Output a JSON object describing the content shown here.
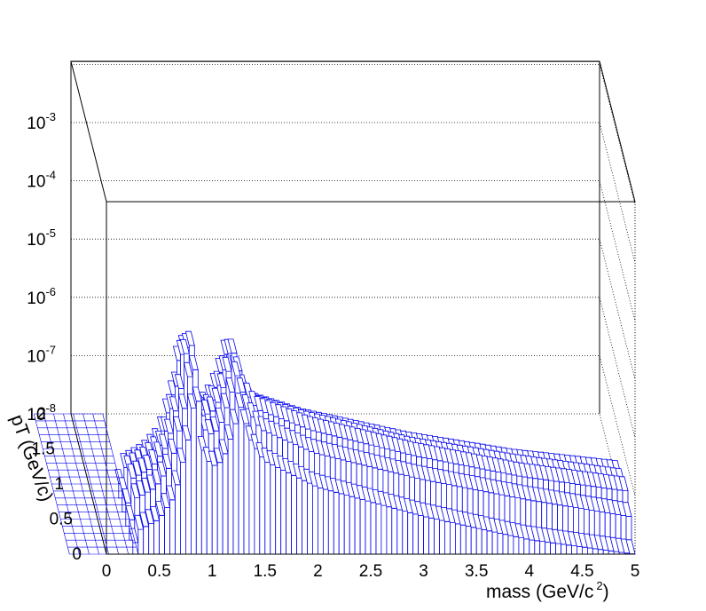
{
  "chart_data": {
    "type": "lego3d",
    "title": "",
    "xlabel": "mass (GeV/c",
    "xlabel_sup": "2",
    "xlabel_end": ")",
    "ylabel": "pT (GeV/c)",
    "zlabel": "",
    "x_range": [
      0,
      5
    ],
    "y_range": [
      0,
      2
    ],
    "z_range_log10": [
      -8,
      -2
    ],
    "log_z": true,
    "grid_z": true,
    "x_ticks": [
      "0",
      "0.5",
      "1",
      "1.5",
      "2",
      "2.5",
      "3",
      "3.5",
      "4",
      "4.5",
      "5"
    ],
    "y_ticks": [
      "0",
      "0.5",
      "1",
      "1.5",
      "2"
    ],
    "z_ticks": [
      {
        "base": "10",
        "exp": "-8"
      },
      {
        "base": "10",
        "exp": "-7"
      },
      {
        "base": "10",
        "exp": "-6"
      },
      {
        "base": "10",
        "exp": "-5"
      },
      {
        "base": "10",
        "exp": "-4"
      },
      {
        "base": "10",
        "exp": "-3"
      }
    ],
    "mass_bins": 100,
    "pt_rows": [
      0.1,
      0.3,
      0.5,
      0.7,
      0.9
    ],
    "series": [
      {
        "pt": 0.9,
        "envelope_log10": [
          [
            0.25,
            -8.0
          ],
          [
            0.3,
            -7.5
          ],
          [
            0.5,
            -7.3
          ],
          [
            0.65,
            -7.0
          ],
          [
            0.78,
            -6.2
          ],
          [
            0.86,
            -5.2
          ],
          [
            0.92,
            -6.2
          ],
          [
            1.0,
            -6.5
          ],
          [
            1.1,
            -6.4
          ],
          [
            1.2,
            -6.0
          ],
          [
            1.28,
            -5.5
          ],
          [
            1.36,
            -6.0
          ],
          [
            1.5,
            -6.4
          ],
          [
            2.0,
            -6.7
          ],
          [
            3.0,
            -7.1
          ],
          [
            4.0,
            -7.4
          ],
          [
            5.0,
            -7.6
          ]
        ]
      },
      {
        "pt": 0.7,
        "envelope_log10": [
          [
            0.25,
            -8.0
          ],
          [
            0.3,
            -7.3
          ],
          [
            0.5,
            -7.1
          ],
          [
            0.65,
            -6.8
          ],
          [
            0.78,
            -5.8
          ],
          [
            0.86,
            -4.9
          ],
          [
            0.92,
            -6.0
          ],
          [
            1.0,
            -6.3
          ],
          [
            1.1,
            -6.2
          ],
          [
            1.2,
            -5.7
          ],
          [
            1.28,
            -5.25
          ],
          [
            1.36,
            -5.8
          ],
          [
            1.5,
            -6.2
          ],
          [
            2.0,
            -6.5
          ],
          [
            3.0,
            -6.95
          ],
          [
            4.0,
            -7.25
          ],
          [
            5.0,
            -7.5
          ]
        ]
      },
      {
        "pt": 0.5,
        "envelope_log10": [
          [
            0.25,
            -8.0
          ],
          [
            0.3,
            -7.2
          ],
          [
            0.5,
            -7.0
          ],
          [
            0.65,
            -6.6
          ],
          [
            0.78,
            -5.6
          ],
          [
            0.86,
            -4.6
          ],
          [
            0.92,
            -5.8
          ],
          [
            1.0,
            -6.1
          ],
          [
            1.1,
            -6.0
          ],
          [
            1.2,
            -5.5
          ],
          [
            1.28,
            -5.0
          ],
          [
            1.36,
            -5.6
          ],
          [
            1.5,
            -6.0
          ],
          [
            2.0,
            -6.35
          ],
          [
            3.0,
            -6.8
          ],
          [
            4.0,
            -7.15
          ],
          [
            5.0,
            -7.4
          ]
        ]
      },
      {
        "pt": 0.3,
        "envelope_log10": [
          [
            0.25,
            -8.0
          ],
          [
            0.3,
            -7.3
          ],
          [
            0.5,
            -7.1
          ],
          [
            0.65,
            -6.7
          ],
          [
            0.78,
            -5.7
          ],
          [
            0.86,
            -4.8
          ],
          [
            0.92,
            -5.9
          ],
          [
            1.0,
            -6.2
          ],
          [
            1.1,
            -6.1
          ],
          [
            1.2,
            -5.6
          ],
          [
            1.28,
            -5.15
          ],
          [
            1.36,
            -5.7
          ],
          [
            1.5,
            -6.1
          ],
          [
            2.0,
            -6.5
          ],
          [
            3.0,
            -6.95
          ],
          [
            4.0,
            -7.3
          ],
          [
            5.0,
            -7.6
          ]
        ]
      },
      {
        "pt": 0.1,
        "envelope_log10": [
          [
            0.25,
            -8.0
          ],
          [
            0.3,
            -7.6
          ],
          [
            0.5,
            -7.4
          ],
          [
            0.65,
            -7.0
          ],
          [
            0.78,
            -6.0
          ],
          [
            0.86,
            -5.1
          ],
          [
            0.92,
            -6.2
          ],
          [
            1.0,
            -6.5
          ],
          [
            1.1,
            -6.4
          ],
          [
            1.2,
            -5.9
          ],
          [
            1.28,
            -5.45
          ],
          [
            1.36,
            -6.0
          ],
          [
            1.5,
            -6.4
          ],
          [
            2.0,
            -6.85
          ],
          [
            3.0,
            -7.35
          ],
          [
            4.0,
            -7.75
          ],
          [
            5.0,
            -8.0
          ]
        ]
      }
    ],
    "colors": {
      "bars": "#0000ee",
      "frame": "#000000",
      "grid": "#000000"
    }
  }
}
